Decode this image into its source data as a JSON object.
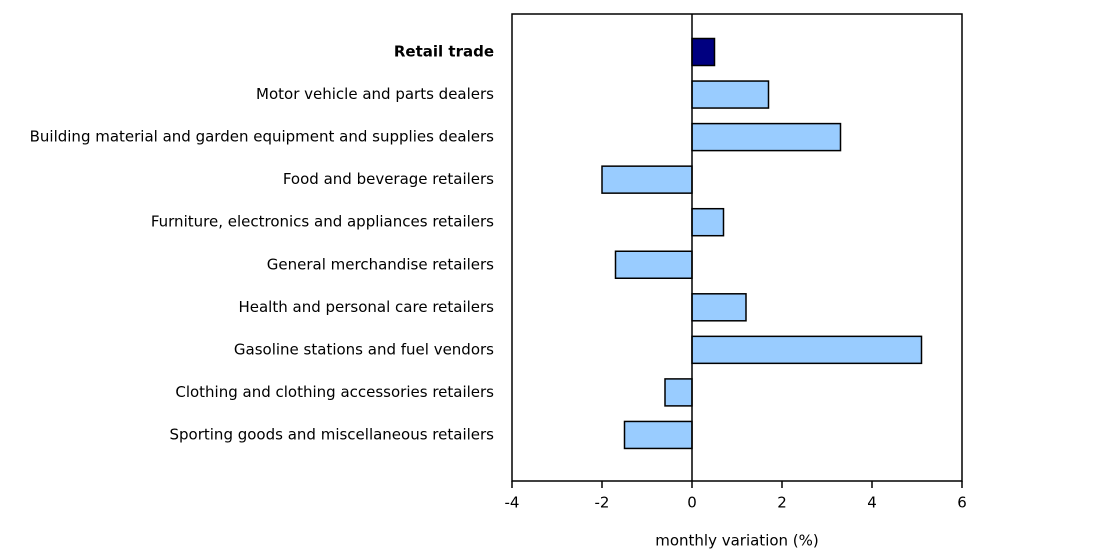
{
  "chart_data": {
    "type": "barh",
    "x_label": "monthly variation (%)",
    "categories": [
      "Retail trade",
      "Motor vehicle and parts dealers",
      "Building material and garden equipment and supplies dealers",
      "Food and beverage retailers",
      "Furniture, electronics and appliances retailers",
      "General merchandise retailers",
      "Health and personal care retailers",
      "Gasoline stations and fuel vendors",
      "Clothing and clothing accessories retailers",
      "Sporting goods and miscellaneous retailers"
    ],
    "values": [
      0.5,
      1.7,
      3.3,
      -2.0,
      0.7,
      -1.7,
      1.2,
      5.1,
      -0.6,
      -1.5
    ],
    "colors": [
      "#000080",
      "#99ccff",
      "#99ccff",
      "#99ccff",
      "#99ccff",
      "#99ccff",
      "#99ccff",
      "#99ccff",
      "#99ccff",
      "#99ccff"
    ],
    "xlim": [
      -4,
      6
    ],
    "xticks": [
      -4,
      -2,
      0,
      2,
      4,
      6
    ]
  }
}
